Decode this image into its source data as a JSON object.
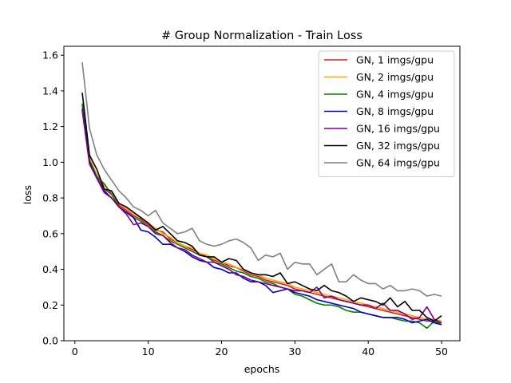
{
  "chart_data": {
    "type": "line",
    "title": "# Group Normalization - Train Loss",
    "xlabel": "epochs",
    "ylabel": "loss",
    "xlim": [
      -1.5,
      52.5
    ],
    "ylim": [
      0.0,
      1.65
    ],
    "xticks": [
      0,
      10,
      20,
      30,
      40,
      50
    ],
    "yticks": [
      0.0,
      0.2,
      0.4,
      0.6,
      0.8,
      1.0,
      1.2,
      1.4,
      1.6
    ],
    "ytick_labels": [
      "0.0",
      "0.2",
      "0.4",
      "0.6",
      "0.8",
      "1.0",
      "1.2",
      "1.4",
      "1.6"
    ],
    "grid": false,
    "legend_position": "top-right",
    "x": [
      1,
      2,
      3,
      4,
      5,
      6,
      7,
      8,
      9,
      10,
      11,
      12,
      13,
      14,
      15,
      16,
      17,
      18,
      19,
      20,
      21,
      22,
      23,
      24,
      25,
      26,
      27,
      28,
      29,
      30,
      31,
      32,
      33,
      34,
      35,
      36,
      37,
      38,
      39,
      40,
      41,
      42,
      43,
      44,
      45,
      46,
      47,
      48,
      49,
      50
    ],
    "series": [
      {
        "name": "GN, 1 imgs/gpu",
        "color": "#e41a1c",
        "values": [
          1.32,
          1.02,
          0.92,
          0.85,
          0.82,
          0.76,
          0.73,
          0.7,
          0.68,
          0.65,
          0.62,
          0.61,
          0.57,
          0.55,
          0.53,
          0.51,
          0.49,
          0.47,
          0.45,
          0.44,
          0.42,
          0.41,
          0.39,
          0.37,
          0.36,
          0.34,
          0.33,
          0.32,
          0.31,
          0.29,
          0.28,
          0.27,
          0.26,
          0.25,
          0.24,
          0.23,
          0.22,
          0.21,
          0.2,
          0.19,
          0.18,
          0.17,
          0.16,
          0.15,
          0.14,
          0.13,
          0.12,
          0.11,
          0.11,
          0.1
        ]
      },
      {
        "name": "GN, 2 imgs/gpu",
        "color": "#ffa500",
        "values": [
          1.31,
          1.03,
          0.93,
          0.87,
          0.83,
          0.77,
          0.74,
          0.71,
          0.69,
          0.66,
          0.63,
          0.6,
          0.58,
          0.55,
          0.53,
          0.52,
          0.49,
          0.48,
          0.46,
          0.44,
          0.43,
          0.41,
          0.4,
          0.38,
          0.37,
          0.35,
          0.34,
          0.33,
          0.32,
          0.3,
          0.29,
          0.28,
          0.27,
          0.26,
          0.25,
          0.24,
          0.23,
          0.22,
          0.21,
          0.2,
          0.19,
          0.18,
          0.17,
          0.16,
          0.15,
          0.14,
          0.13,
          0.12,
          0.12,
          0.11
        ]
      },
      {
        "name": "GN, 4 imgs/gpu",
        "color": "#008000",
        "values": [
          1.33,
          1.01,
          0.92,
          0.88,
          0.82,
          0.75,
          0.72,
          0.69,
          0.67,
          0.64,
          0.61,
          0.59,
          0.56,
          0.54,
          0.52,
          0.5,
          0.48,
          0.47,
          0.44,
          0.43,
          0.41,
          0.39,
          0.38,
          0.36,
          0.35,
          0.33,
          0.32,
          0.3,
          0.29,
          0.26,
          0.25,
          0.23,
          0.21,
          0.2,
          0.2,
          0.19,
          0.17,
          0.16,
          0.16,
          0.15,
          0.14,
          0.13,
          0.13,
          0.12,
          0.11,
          0.11,
          0.1,
          0.07,
          0.11,
          0.09
        ]
      },
      {
        "name": "GN, 8 imgs/gpu",
        "color": "#0000cd",
        "values": [
          1.3,
          1.0,
          0.91,
          0.84,
          0.8,
          0.75,
          0.72,
          0.69,
          0.62,
          0.61,
          0.58,
          0.54,
          0.54,
          0.52,
          0.5,
          0.47,
          0.45,
          0.44,
          0.41,
          0.4,
          0.38,
          0.38,
          0.35,
          0.33,
          0.33,
          0.31,
          0.27,
          0.28,
          0.29,
          0.27,
          0.26,
          0.25,
          0.23,
          0.22,
          0.21,
          0.2,
          0.19,
          0.18,
          0.16,
          0.15,
          0.14,
          0.13,
          0.13,
          0.13,
          0.12,
          0.1,
          0.11,
          0.12,
          0.1,
          0.09
        ]
      },
      {
        "name": "GN, 16 imgs/gpu",
        "color": "#800080",
        "values": [
          1.29,
          0.99,
          0.91,
          0.83,
          0.8,
          0.75,
          0.71,
          0.65,
          0.66,
          0.64,
          0.6,
          0.59,
          0.55,
          0.52,
          0.51,
          0.48,
          0.46,
          0.44,
          0.44,
          0.42,
          0.4,
          0.37,
          0.36,
          0.34,
          0.33,
          0.32,
          0.31,
          0.3,
          0.29,
          0.28,
          0.28,
          0.27,
          0.3,
          0.24,
          0.25,
          0.23,
          0.22,
          0.21,
          0.2,
          0.2,
          0.18,
          0.21,
          0.17,
          0.17,
          0.15,
          0.12,
          0.13,
          0.19,
          0.12,
          0.1
        ]
      },
      {
        "name": "GN, 32 imgs/gpu",
        "color": "#000000",
        "values": [
          1.39,
          1.04,
          0.96,
          0.85,
          0.84,
          0.77,
          0.75,
          0.72,
          0.69,
          0.66,
          0.62,
          0.64,
          0.6,
          0.56,
          0.55,
          0.53,
          0.48,
          0.47,
          0.47,
          0.44,
          0.46,
          0.45,
          0.4,
          0.38,
          0.37,
          0.37,
          0.36,
          0.38,
          0.32,
          0.33,
          0.31,
          0.29,
          0.28,
          0.31,
          0.28,
          0.27,
          0.25,
          0.22,
          0.24,
          0.23,
          0.22,
          0.2,
          0.24,
          0.19,
          0.22,
          0.17,
          0.17,
          0.13,
          0.11,
          0.14
        ]
      },
      {
        "name": "GN, 64 imgs/gpu",
        "color": "#808080",
        "values": [
          1.56,
          1.19,
          1.04,
          0.96,
          0.9,
          0.84,
          0.8,
          0.75,
          0.73,
          0.7,
          0.73,
          0.66,
          0.63,
          0.6,
          0.61,
          0.63,
          0.56,
          0.54,
          0.53,
          0.54,
          0.56,
          0.57,
          0.55,
          0.52,
          0.45,
          0.48,
          0.47,
          0.49,
          0.4,
          0.44,
          0.43,
          0.43,
          0.37,
          0.4,
          0.43,
          0.33,
          0.33,
          0.37,
          0.34,
          0.32,
          0.32,
          0.29,
          0.31,
          0.28,
          0.28,
          0.29,
          0.28,
          0.25,
          0.26,
          0.25
        ]
      }
    ]
  }
}
